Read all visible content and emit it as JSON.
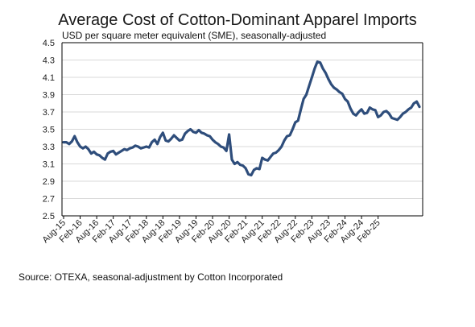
{
  "chart_data": {
    "type": "line",
    "title": "Average Cost of Cotton-Dominant Apparel Imports",
    "subtitle": "USD per square meter equivalent (SME), seasonally-adjusted",
    "source": "Source: OTEXA, seasonal-adjustment by Cotton Incorporated",
    "ylim": [
      2.5,
      4.5
    ],
    "yticks": [
      "4.5",
      "4.3",
      "4.1",
      "3.9",
      "3.7",
      "3.5",
      "3.3",
      "3.1",
      "2.9",
      "2.7",
      "2.5"
    ],
    "grid": true,
    "x_tick_labels": [
      "Aug-15",
      "Feb-16",
      "Aug-16",
      "Feb-17",
      "Aug-17",
      "Feb-18",
      "Aug-18",
      "Feb-19",
      "Aug-19",
      "Feb-20",
      "Aug-20",
      "Feb-21",
      "Aug-21",
      "Feb-22",
      "Aug-22",
      "Feb-23",
      "Aug-23",
      "Feb-24",
      "Aug-24",
      "Feb-25"
    ],
    "line_color": "#2e4d7b",
    "series": [
      {
        "values": [
          3.35,
          3.35,
          3.33,
          3.36,
          3.42,
          3.35,
          3.3,
          3.28,
          3.3,
          3.27,
          3.22,
          3.24,
          3.21,
          3.2,
          3.17,
          3.15,
          3.22,
          3.24,
          3.25,
          3.21,
          3.23,
          3.25,
          3.27,
          3.26,
          3.28,
          3.29,
          3.31,
          3.3,
          3.28,
          3.29,
          3.3,
          3.29,
          3.35,
          3.38,
          3.33,
          3.41,
          3.46,
          3.37,
          3.36,
          3.39,
          3.43,
          3.4,
          3.37,
          3.38,
          3.45,
          3.48,
          3.5,
          3.47,
          3.46,
          3.49,
          3.46,
          3.45,
          3.43,
          3.42,
          3.38,
          3.35,
          3.33,
          3.3,
          3.29,
          3.25,
          3.44,
          3.15,
          3.1,
          3.12,
          3.09,
          3.08,
          3.05,
          2.98,
          2.97,
          3.03,
          3.05,
          3.04,
          3.17,
          3.15,
          3.14,
          3.18,
          3.22,
          3.23,
          3.26,
          3.3,
          3.37,
          3.42,
          3.43,
          3.5,
          3.58,
          3.6,
          3.73,
          3.85,
          3.9,
          4.0,
          4.1,
          4.2,
          4.28,
          4.27,
          4.2,
          4.15,
          4.08,
          4.02,
          3.98,
          3.96,
          3.93,
          3.91,
          3.85,
          3.82,
          3.74,
          3.68,
          3.66,
          3.7,
          3.73,
          3.68,
          3.69,
          3.75,
          3.73,
          3.72,
          3.64,
          3.66,
          3.7,
          3.71,
          3.68,
          3.63,
          3.62,
          3.61,
          3.64,
          3.68,
          3.7,
          3.73,
          3.75,
          3.8,
          3.82,
          3.76
        ]
      }
    ]
  }
}
